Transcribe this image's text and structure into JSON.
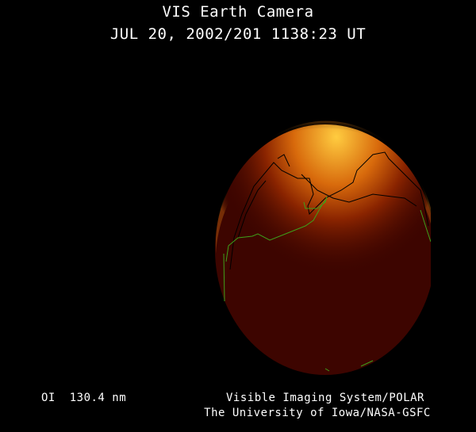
{
  "header": {
    "title": "VIS Earth Camera",
    "timestamp": "JUL 20, 2002/201 1138:23 UT"
  },
  "footer": {
    "wavelength": "OI  130.4 nm",
    "instrument": "Visible Imaging System/POLAR",
    "institution": "The University of Iowa/NASA-GSFC"
  },
  "colors": {
    "background": "#000000",
    "disk": "#3d0500",
    "aurora_bright": "#ffd24a",
    "aurora_mid": "#d26a0a",
    "coastline_day": "#000000",
    "coastline_night": "#3ea01a"
  }
}
